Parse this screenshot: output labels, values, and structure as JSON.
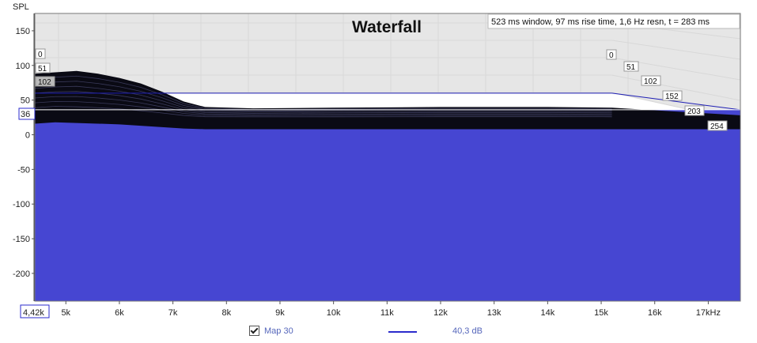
{
  "chart_data": {
    "type": "area",
    "title": "Waterfall",
    "info": "523 ms window, 97 ms rise time,  1,6 Hz resn, t = 283 ms",
    "ylabel": "SPL",
    "ylim": [
      -240,
      175
    ],
    "xlim": [
      4420,
      17600
    ],
    "y_ticks": [
      150,
      100,
      50,
      0,
      -50,
      -100,
      -150,
      -200
    ],
    "x_ticks": [
      {
        "v": 5000,
        "label": "5k"
      },
      {
        "v": 6000,
        "label": "6k"
      },
      {
        "v": 7000,
        "label": "7k"
      },
      {
        "v": 8000,
        "label": "8k"
      },
      {
        "v": 9000,
        "label": "9k"
      },
      {
        "v": 10000,
        "label": "10k"
      },
      {
        "v": 11000,
        "label": "11k"
      },
      {
        "v": 12000,
        "label": "12k"
      },
      {
        "v": 13000,
        "label": "13k"
      },
      {
        "v": 14000,
        "label": "14k"
      },
      {
        "v": 15000,
        "label": "15k"
      },
      {
        "v": 16000,
        "label": "16k"
      },
      {
        "v": 17000,
        "label": "17kHz"
      }
    ],
    "x_start_label": "4,42k",
    "y_cursor_label": "36",
    "y_cursor_value": 36,
    "time_labels_ms": [
      "0",
      "51",
      "102",
      "152",
      "203",
      "254"
    ],
    "surface_front": {
      "x": [
        4420,
        4800,
        5200,
        5600,
        6000,
        6400,
        6800,
        7200,
        7600,
        8500,
        10000,
        12000,
        14000,
        15200
      ],
      "y": [
        38,
        40,
        39,
        38,
        37,
        35,
        33,
        31,
        30,
        30,
        30,
        30,
        30,
        30
      ]
    },
    "surface_peak": {
      "x": [
        4420,
        4800,
        5200,
        5600,
        6000,
        6400,
        6800,
        7200,
        7600,
        8500,
        10000,
        12000,
        14000,
        15200
      ],
      "y": [
        88,
        90,
        92,
        88,
        82,
        74,
        62,
        48,
        40,
        38,
        39,
        40,
        40,
        39
      ]
    },
    "legend": [
      {
        "name": "Map 30",
        "checked": true
      },
      {
        "name": "",
        "value": "40,3 dB",
        "color": "#2b2bcc"
      }
    ],
    "colors": {
      "fill": "#4646d2",
      "surface": "#0a0a14",
      "back_plane": "#e6e6e6",
      "front_line": "#1e1eb4",
      "grid": "#d8d8d8"
    }
  }
}
